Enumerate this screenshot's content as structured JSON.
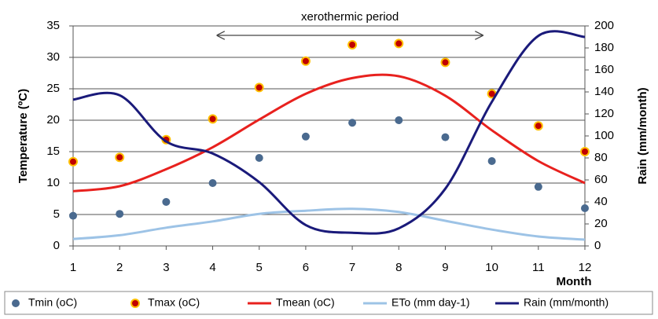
{
  "chart_data": {
    "type": "combo",
    "x": [
      1,
      2,
      3,
      4,
      5,
      6,
      7,
      8,
      9,
      10,
      11,
      12
    ],
    "xlim": [
      1,
      12
    ],
    "xticks": [
      1,
      2,
      3,
      4,
      5,
      6,
      7,
      8,
      9,
      10,
      11,
      12
    ],
    "xlabel": "Month",
    "ylabel": "Temperature (ºC)",
    "ylim": [
      0,
      35
    ],
    "yticks": [
      0,
      5,
      10,
      15,
      20,
      25,
      30,
      35
    ],
    "y2label": "Rain (mm/month)",
    "y2lim": [
      0,
      200
    ],
    "y2ticks": [
      0,
      20,
      40,
      60,
      80,
      100,
      120,
      140,
      160,
      180,
      200
    ],
    "grid": true,
    "legend": "bottom",
    "annotation": {
      "text": "xerothermic period",
      "x_range": [
        4.1,
        9.8
      ]
    },
    "series": [
      {
        "name": "Tmin (oC)",
        "style": "markers",
        "color": "#4a6a8f",
        "values": [
          4.8,
          5.1,
          7,
          10,
          14,
          17.4,
          19.6,
          20,
          17.3,
          13.5,
          9.4,
          6
        ]
      },
      {
        "name": "Tmax (oC)",
        "style": "markers",
        "color": "#c00000",
        "edge_color": "#ffc000",
        "values": [
          13.4,
          14.1,
          16.9,
          20.2,
          25.2,
          29.4,
          32,
          32.2,
          29.2,
          24.2,
          19.1,
          15
        ]
      },
      {
        "name": "Tmean (oC)",
        "style": "line",
        "color": "#e8211e",
        "values": [
          8.7,
          9.5,
          12.2,
          15.7,
          20.1,
          24.2,
          26.7,
          27,
          23.9,
          18.4,
          13.5,
          10
        ]
      },
      {
        "name": "ETo (mm day-1)",
        "style": "line",
        "color": "#9dc3e6",
        "values": [
          1.1,
          1.7,
          2.9,
          3.9,
          5.1,
          5.6,
          5.9,
          5.4,
          4,
          2.6,
          1.5,
          1
        ]
      },
      {
        "name": "Rain (mm/month)",
        "style": "line",
        "axis": "y2",
        "color": "#1a1a7a",
        "values": [
          133,
          137,
          95,
          84,
          58,
          19,
          12,
          16,
          52,
          131,
          191,
          190
        ]
      }
    ]
  }
}
